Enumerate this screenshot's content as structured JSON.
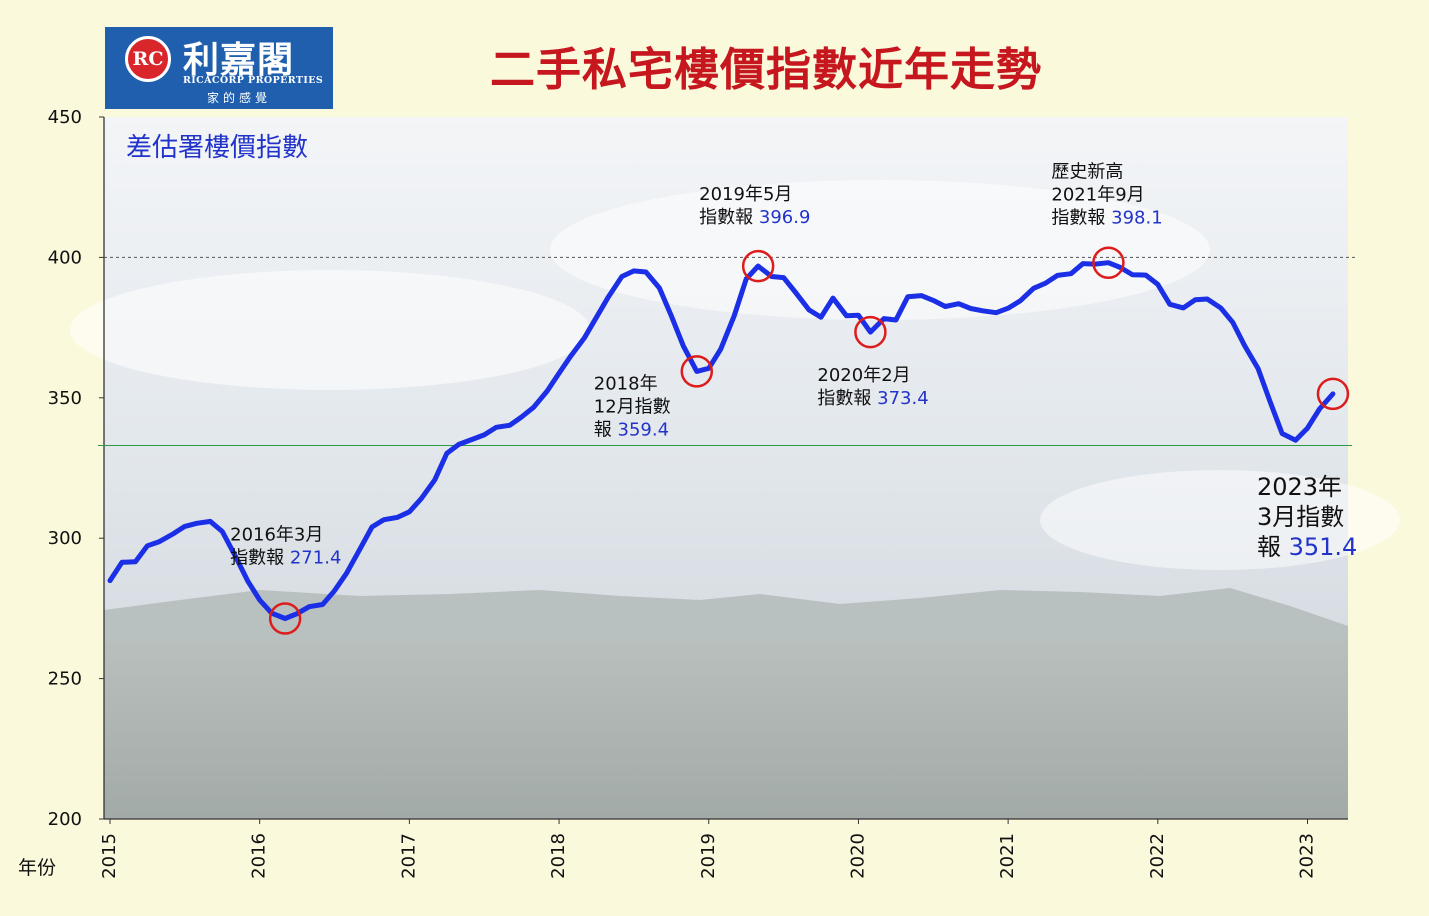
{
  "header": {
    "title": "二手私宅樓價指數近年走勢",
    "logo_name": "利嘉閣",
    "logo_en": "RICACORP PROPERTIES",
    "logo_slogan": "家的感覺",
    "logo_mark": "RC"
  },
  "colors": {
    "title": "#c6171e",
    "line": "#1a2fe6",
    "marker": "#dd1c1c",
    "logo_bg": "#1f5fae",
    "guide_green": "#2e9a47",
    "value_text": "#2233cc"
  },
  "chart_data": {
    "type": "line",
    "title": "二手私宅樓價指數近年走勢",
    "xlabel": "年份",
    "ylabel": "",
    "x_range": [
      2015.0,
      2023.17
    ],
    "ylim": [
      200,
      450
    ],
    "yticks": [
      200,
      250,
      300,
      350,
      400,
      450
    ],
    "xticks": [
      "2015",
      "2016",
      "2017",
      "2018",
      "2019",
      "2020",
      "2021",
      "2022",
      "2023"
    ],
    "grid": false,
    "legend": "top-left",
    "series": [
      {
        "name": "差估署樓價指數",
        "x": [
          2015.0,
          2015.08,
          2015.17,
          2015.25,
          2015.33,
          2015.42,
          2015.5,
          2015.58,
          2015.67,
          2015.75,
          2015.83,
          2015.92,
          2016.0,
          2016.08,
          2016.17,
          2016.25,
          2016.33,
          2016.42,
          2016.5,
          2016.58,
          2016.67,
          2016.75,
          2016.83,
          2016.92,
          2017.0,
          2017.08,
          2017.17,
          2017.25,
          2017.33,
          2017.42,
          2017.5,
          2017.58,
          2017.67,
          2017.75,
          2017.83,
          2017.92,
          2018.0,
          2018.08,
          2018.17,
          2018.25,
          2018.33,
          2018.42,
          2018.5,
          2018.58,
          2018.67,
          2018.75,
          2018.83,
          2018.92,
          2019.0,
          2019.08,
          2019.17,
          2019.25,
          2019.33,
          2019.42,
          2019.5,
          2019.58,
          2019.67,
          2019.75,
          2019.83,
          2019.92,
          2020.0,
          2020.08,
          2020.17,
          2020.25,
          2020.33,
          2020.42,
          2020.5,
          2020.58,
          2020.67,
          2020.75,
          2020.83,
          2020.92,
          2021.0,
          2021.08,
          2021.17,
          2021.25,
          2021.33,
          2021.42,
          2021.5,
          2021.58,
          2021.67,
          2021.75,
          2021.83,
          2021.92,
          2022.0,
          2022.08,
          2022.17,
          2022.25,
          2022.33,
          2022.42,
          2022.5,
          2022.58,
          2022.67,
          2022.75,
          2022.83,
          2022.92,
          2023.0,
          2023.08,
          2023.17
        ],
        "values": [
          284.9,
          291.4,
          291.6,
          297.3,
          298.8,
          301.5,
          304.2,
          305.3,
          306.0,
          302.4,
          294.4,
          284.8,
          278.0,
          273.3,
          271.4,
          273.1,
          275.6,
          276.4,
          281.3,
          287.5,
          296.2,
          304.0,
          306.6,
          307.4,
          309.4,
          314.1,
          320.8,
          330.2,
          333.4,
          335.2,
          336.8,
          339.5,
          340.2,
          343.2,
          346.6,
          352.4,
          358.8,
          365.0,
          371.4,
          378.7,
          386.0,
          393.2,
          395.2,
          394.8,
          389.1,
          379.2,
          368.5,
          359.4,
          360.5,
          367.3,
          379.2,
          392.3,
          396.9,
          393.2,
          392.8,
          387.5,
          381.3,
          378.7,
          385.5,
          379.2,
          379.4,
          373.4,
          378.2,
          377.7,
          386.0,
          386.4,
          384.7,
          382.5,
          383.5,
          381.8,
          381.0,
          380.3,
          381.9,
          384.5,
          389.0,
          390.8,
          393.6,
          394.2,
          397.8,
          397.6,
          398.1,
          396.4,
          393.8,
          393.7,
          390.4,
          383.3,
          382.0,
          384.9,
          385.2,
          382.0,
          376.9,
          368.6,
          360.4,
          348.6,
          337.3,
          334.9,
          339.2,
          346.0,
          351.4
        ]
      }
    ],
    "reference_lines": [
      {
        "y": 400,
        "style": "dashed",
        "color": "#555555"
      },
      {
        "y": 333,
        "style": "solid",
        "color": "#2e9a47"
      }
    ],
    "annotations": [
      {
        "x": 2016.17,
        "y": 271.4,
        "lines": [
          "2016年3月",
          "指數報 "
        ],
        "value": "271.4"
      },
      {
        "x": 2018.92,
        "y": 359.4,
        "lines": [
          "2018年",
          "12月指數",
          "報 "
        ],
        "value": "359.4"
      },
      {
        "x": 2019.33,
        "y": 396.9,
        "lines": [
          "2019年5月",
          "指數報 "
        ],
        "value": "396.9"
      },
      {
        "x": 2020.08,
        "y": 373.4,
        "lines": [
          "2020年2月",
          "指數報 "
        ],
        "value": "373.4"
      },
      {
        "x": 2021.67,
        "y": 398.1,
        "lines": [
          "歷史新高",
          "2021年9月",
          "指數報 "
        ],
        "value": "398.1"
      },
      {
        "x": 2023.17,
        "y": 351.4,
        "lines": [
          "2023年",
          "3月指數",
          "報 "
        ],
        "value": "351.4"
      }
    ]
  }
}
